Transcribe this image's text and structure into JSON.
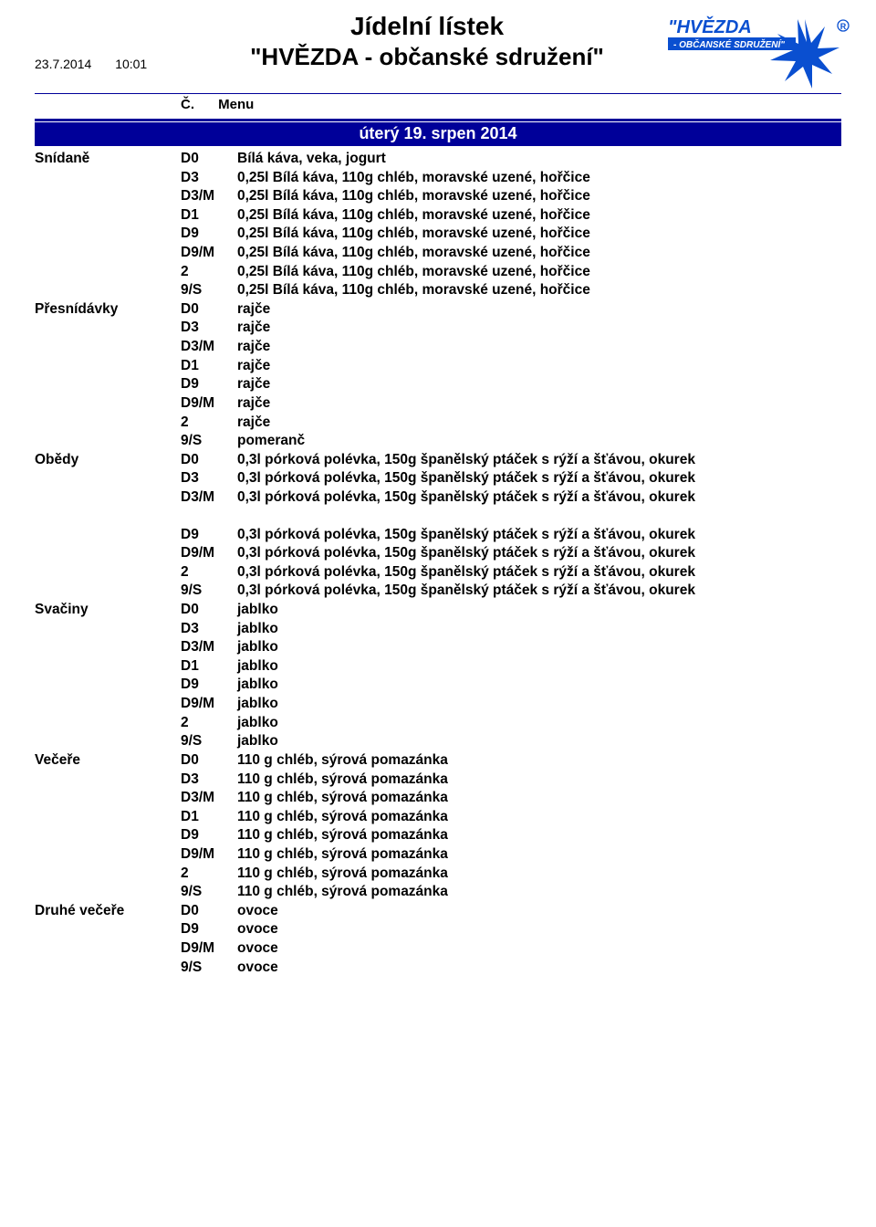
{
  "colors": {
    "accent": "#000099",
    "logo_star": "#0a4fd0",
    "logo_text": "#0a4fd0",
    "logo_sub_bg": "#0a4fd0",
    "logo_sub_text": "#ffffff",
    "reg_mark": "#0a4fd0"
  },
  "header": {
    "date": "23.7.2014",
    "time": "10:01",
    "title_main": "Jídelní lístek",
    "title_sub": "\"HVĚZDA - občanské sdružení\"",
    "col_c": "Č.",
    "col_menu": "Menu",
    "logo_text": "\"HVĚZDA",
    "logo_sub": "- OBČANSKÉ SDRUŽENÍ\"",
    "reg_mark": "®"
  },
  "date_bar": "úterý  19. srpen 2014",
  "sections": [
    {
      "category": "Snídaně",
      "rows": [
        {
          "code": "D0",
          "desc": "Bílá káva, veka, jogurt"
        },
        {
          "code": "D3",
          "desc": "0,25l Bílá káva, 110g chléb, moravské uzené, hořčice"
        },
        {
          "code": "D3/M",
          "desc": "0,25l Bílá káva, 110g chléb, moravské uzené, hořčice"
        },
        {
          "code": "D1",
          "desc": "0,25l Bílá káva, 110g chléb, moravské uzené, hořčice"
        },
        {
          "code": "D9",
          "desc": "0,25l Bílá káva, 110g chléb, moravské uzené, hořčice"
        },
        {
          "code": "D9/M",
          "desc": "0,25l Bílá káva, 110g chléb, moravské uzené, hořčice"
        },
        {
          "code": "2",
          "desc": "0,25l Bílá káva, 110g chléb, moravské uzené, hořčice"
        },
        {
          "code": "9/S",
          "desc": "0,25l Bílá káva, 110g chléb, moravské uzené, hořčice"
        }
      ]
    },
    {
      "category": "Přesnídávky",
      "rows": [
        {
          "code": "D0",
          "desc": "rajče"
        },
        {
          "code": "D3",
          "desc": "rajče"
        },
        {
          "code": "D3/M",
          "desc": "rajče"
        },
        {
          "code": "D1",
          "desc": "rajče"
        },
        {
          "code": "D9",
          "desc": "rajče"
        },
        {
          "code": "D9/M",
          "desc": "rajče"
        },
        {
          "code": "2",
          "desc": "rajče"
        },
        {
          "code": "9/S",
          "desc": "pomeranč"
        }
      ]
    },
    {
      "category": "Obědy",
      "rows": [
        {
          "code": "D0",
          "desc": "0,3l pórková polévka, 150g španělský ptáček s rýží a šťávou, okurek"
        },
        {
          "code": "D3",
          "desc": "0,3l pórková polévka, 150g španělský ptáček s rýží a šťávou, okurek"
        },
        {
          "code": "D3/M",
          "desc": "0,3l pórková polévka, 150g španělský ptáček s rýží a šťávou, okurek"
        }
      ]
    }
  ],
  "sections2": [
    {
      "category": "",
      "rows": [
        {
          "code": "D9",
          "desc": "0,3l pórková polévka, 150g španělský ptáček s rýží a šťávou, okurek"
        },
        {
          "code": "D9/M",
          "desc": "0,3l pórková polévka, 150g španělský ptáček s rýží a šťávou, okurek"
        },
        {
          "code": "2",
          "desc": "0,3l pórková polévka, 150g španělský ptáček s rýží a šťávou, okurek"
        },
        {
          "code": "9/S",
          "desc": "0,3l pórková polévka, 150g španělský ptáček s rýží a šťávou, okurek"
        }
      ]
    },
    {
      "category": "Svačiny",
      "rows": [
        {
          "code": "D0",
          "desc": "jablko"
        },
        {
          "code": "D3",
          "desc": "jablko"
        },
        {
          "code": "D3/M",
          "desc": "jablko"
        },
        {
          "code": "D1",
          "desc": "jablko"
        },
        {
          "code": "D9",
          "desc": "jablko"
        },
        {
          "code": "D9/M",
          "desc": "jablko"
        },
        {
          "code": "2",
          "desc": "jablko"
        },
        {
          "code": "9/S",
          "desc": "jablko"
        }
      ]
    },
    {
      "category": "Večeře",
      "rows": [
        {
          "code": "D0",
          "desc": "110 g chléb, sýrová pomazánka"
        },
        {
          "code": "D3",
          "desc": "110 g chléb, sýrová pomazánka"
        },
        {
          "code": "D3/M",
          "desc": "110 g chléb, sýrová pomazánka"
        },
        {
          "code": "D1",
          "desc": "110 g chléb, sýrová pomazánka"
        },
        {
          "code": "D9",
          "desc": "110 g chléb, sýrová pomazánka"
        },
        {
          "code": "D9/M",
          "desc": "110 g chléb, sýrová pomazánka"
        },
        {
          "code": "2",
          "desc": "110 g chléb, sýrová pomazánka"
        },
        {
          "code": "9/S",
          "desc": "110 g chléb, sýrová pomazánka"
        }
      ]
    },
    {
      "category": "Druhé večeře",
      "rows": [
        {
          "code": "D0",
          "desc": "ovoce"
        },
        {
          "code": "D9",
          "desc": "ovoce"
        },
        {
          "code": "D9/M",
          "desc": "ovoce"
        },
        {
          "code": "9/S",
          "desc": "ovoce"
        }
      ]
    }
  ]
}
